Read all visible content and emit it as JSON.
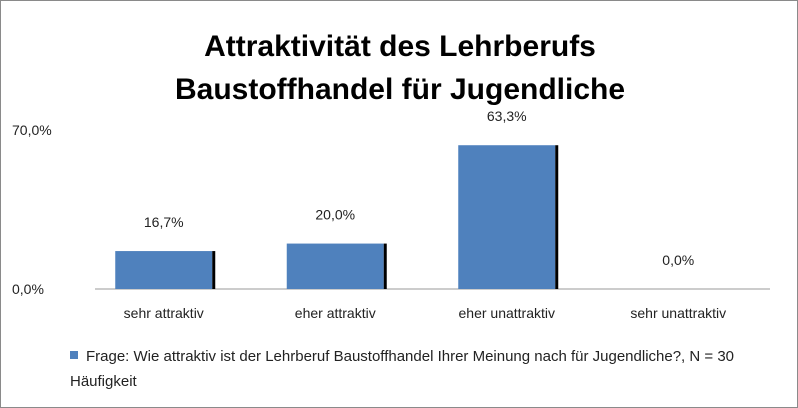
{
  "chart_data": {
    "type": "bar",
    "title": [
      "Attraktivität des Lehrberufs",
      "Baustoffhandel für Jugendliche"
    ],
    "categories": [
      "sehr attraktiv",
      "eher attraktiv",
      "eher unattraktiv",
      "sehr unattraktiv"
    ],
    "series": [
      {
        "name": "Frage: Wie attraktiv ist der Lehrberuf Baustoffhandel Ihrer Meinung nach für Jugendliche?, N = 30  Häufigkeit",
        "color": "#4f81bd",
        "values": [
          16.7,
          20.0,
          63.3,
          0.0
        ],
        "value_labels": [
          "16,7%",
          "20,0%",
          "63,3%",
          "0,0%"
        ]
      }
    ],
    "ylim": [
      0,
      70
    ],
    "yticks": [
      {
        "value": 0,
        "label": "0,0%"
      },
      {
        "value": 70,
        "label": "70,0%"
      }
    ],
    "grid": false,
    "legend": "bottom"
  }
}
